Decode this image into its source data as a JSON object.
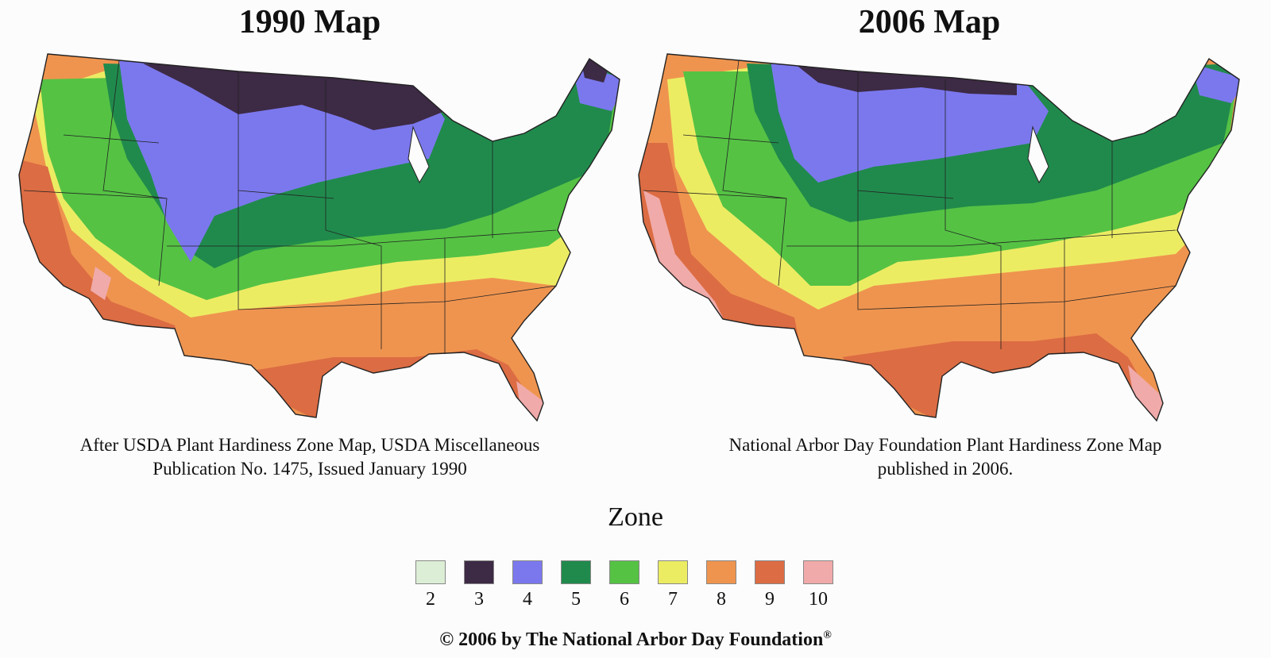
{
  "maps": [
    {
      "title": "1990 Map",
      "caption_line1": "After USDA Plant Hardiness Zone Map, USDA Miscellaneous",
      "caption_line2": "Publication No. 1475, Issued January 1990"
    },
    {
      "title": "2006 Map",
      "caption_line1": "National Arbor Day Foundation Plant Hardiness Zone Map",
      "caption_line2": "published in 2006."
    }
  ],
  "legend": {
    "title": "Zone",
    "zones": [
      {
        "label": "2",
        "color": "#dcefd6"
      },
      {
        "label": "3",
        "color": "#3d2a45"
      },
      {
        "label": "4",
        "color": "#7b78ee"
      },
      {
        "label": "5",
        "color": "#208a4c"
      },
      {
        "label": "6",
        "color": "#55c244"
      },
      {
        "label": "7",
        "color": "#ecec63"
      },
      {
        "label": "8",
        "color": "#ef944f"
      },
      {
        "label": "9",
        "color": "#dc6c43"
      },
      {
        "label": "10",
        "color": "#f0aaa9"
      }
    ]
  },
  "copyright": {
    "text": "© 2006 by The National Arbor Day Foundation",
    "mark": "®"
  }
}
